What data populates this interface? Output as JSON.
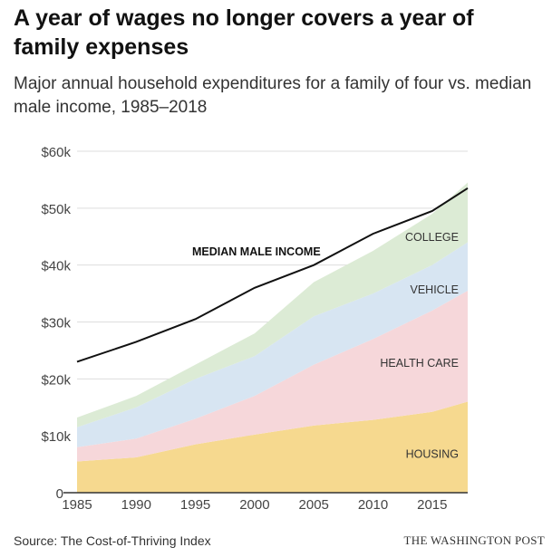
{
  "title": "A year of wages no longer covers a year of family expenses",
  "subtitle": "Major annual household expenditures for a family of four vs. median male income, 1985–2018",
  "source": "Source: The Cost-of-Thriving Index",
  "credit": "THE WASHINGTON POST",
  "chart_data": {
    "type": "area",
    "stacked": true,
    "x": [
      1985,
      1990,
      1995,
      2000,
      2005,
      2010,
      2015,
      2018
    ],
    "xticks": [
      "1985",
      "1990",
      "1995",
      "2000",
      "2005",
      "2010",
      "2015"
    ],
    "yticks": [
      "0",
      "$10k",
      "$20k",
      "$30k",
      "$40k",
      "$50k",
      "$60k"
    ],
    "ylim": [
      0,
      60000
    ],
    "grid": true,
    "series": [
      {
        "name": "HOUSING",
        "color": "#f6d98f",
        "values": [
          5500,
          6200,
          8500,
          10200,
          11800,
          12800,
          14200,
          16000
        ]
      },
      {
        "name": "HEALTH CARE",
        "color": "#f6d7da",
        "values": [
          2500,
          3300,
          4500,
          6800,
          10700,
          14200,
          17800,
          19500
        ]
      },
      {
        "name": "VEHICLE",
        "color": "#d7e5f2",
        "values": [
          3500,
          5500,
          7000,
          7000,
          8500,
          8000,
          8000,
          8500
        ]
      },
      {
        "name": "COLLEGE",
        "color": "#dcebd5",
        "values": [
          1700,
          2000,
          2500,
          4000,
          6000,
          7500,
          9000,
          10500
        ]
      }
    ],
    "line": {
      "name": "MEDIAN MALE INCOME",
      "color": "#111111",
      "values": [
        23000,
        26500,
        30500,
        36000,
        40000,
        45500,
        49500,
        53500
      ]
    }
  }
}
